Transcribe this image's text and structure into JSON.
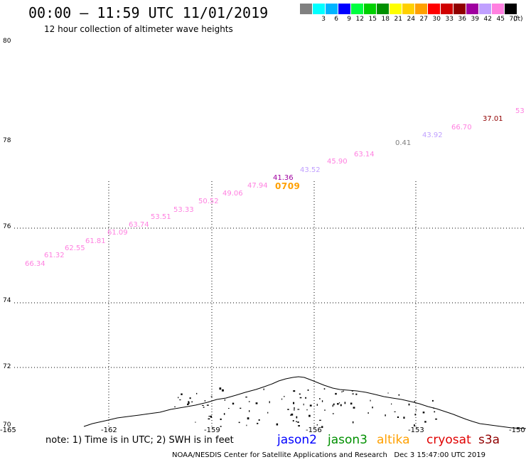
{
  "header": {
    "title": "00:00 — 11:59 UTC 11/01/2019",
    "subtitle": "12 hour collection of altimeter wave heights"
  },
  "colorbar": {
    "unit": "(ft)",
    "colors": [
      "#808080",
      "#00ffff",
      "#00b4ff",
      "#0000ff",
      "#00ff40",
      "#00d000",
      "#009000",
      "#ffff00",
      "#ffd000",
      "#ffa000",
      "#ff0000",
      "#d00000",
      "#900000",
      "#a000a0",
      "#c0a0ff",
      "#ff80e0",
      "#000000"
    ],
    "labels": [
      "",
      "3",
      "6",
      "9",
      "12",
      "15",
      "18",
      "21",
      "24",
      "27",
      "30",
      "33",
      "36",
      "39",
      "42",
      "45",
      "70"
    ]
  },
  "axes": {
    "lat_labels": [
      "80",
      "78",
      "76",
      "74",
      "72",
      "70"
    ],
    "lon_labels": [
      "-165",
      "-162",
      "-159",
      "-156",
      "-153",
      "-150"
    ]
  },
  "track": {
    "time_label": "0709",
    "values": [
      {
        "text": "66.34",
        "color": "#ff80e0"
      },
      {
        "text": "61.32",
        "color": "#ff80e0"
      },
      {
        "text": "62.55",
        "color": "#ff80e0"
      },
      {
        "text": "61.81",
        "color": "#ff80e0"
      },
      {
        "text": "61.09",
        "color": "#ff80e0"
      },
      {
        "text": "63.74",
        "color": "#ff80e0"
      },
      {
        "text": "53.51",
        "color": "#ff80e0"
      },
      {
        "text": "53.33",
        "color": "#ff80e0"
      },
      {
        "text": "50.52",
        "color": "#ff80e0"
      },
      {
        "text": "49.06",
        "color": "#ff80e0"
      },
      {
        "text": "47.94",
        "color": "#ff80e0"
      },
      {
        "text": "41.36",
        "color": "#a000a0"
      },
      {
        "text": "43.52",
        "color": "#c0a0ff"
      },
      {
        "text": "45.90",
        "color": "#ff80e0"
      },
      {
        "text": "63.14",
        "color": "#ff80e0"
      },
      {
        "text": "0.41",
        "color": "#808080"
      },
      {
        "text": "43.92",
        "color": "#c0a0ff"
      },
      {
        "text": "66.70",
        "color": "#ff80e0"
      },
      {
        "text": "37.01",
        "color": "#900000"
      },
      {
        "text": "53",
        "color": "#ff80e0"
      }
    ]
  },
  "legend": {
    "note": "note: 1) Time is in UTC; 2) SWH is in feet",
    "satellites": [
      {
        "name": "jason2",
        "color": "#0000ff"
      },
      {
        "name": "jason3",
        "color": "#009000"
      },
      {
        "name": "altika",
        "color": "#ffa000"
      },
      {
        "name": "cryosat",
        "color": "#e00000"
      },
      {
        "name": "s3a",
        "color": "#900000"
      }
    ]
  },
  "footer": {
    "credit": "NOAA/NESDIS Center for Satellite Applications and Research",
    "timestamp": "Dec  3 15:47:00 UTC 2019"
  }
}
